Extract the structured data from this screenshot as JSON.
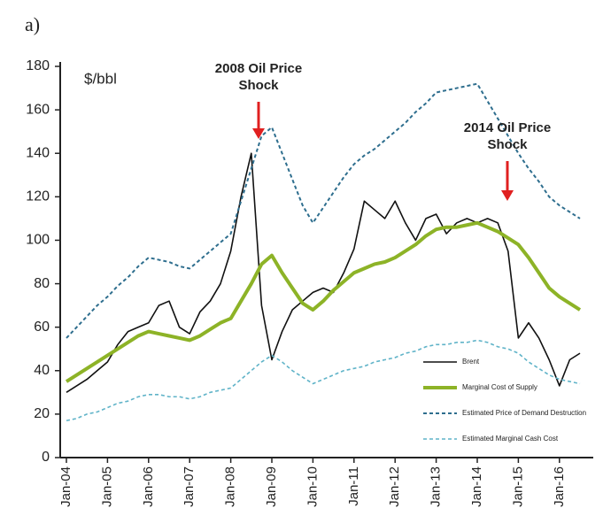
{
  "chart_data": {
    "type": "line",
    "panel_label": "a)",
    "unit_label": "$/bbl",
    "categories": [
      "Jan-04",
      null,
      null,
      null,
      "Jan-05",
      null,
      null,
      null,
      "Jan-06",
      null,
      null,
      null,
      "Jan-07",
      null,
      null,
      null,
      "Jan-08",
      null,
      null,
      null,
      "Jan-09",
      null,
      null,
      null,
      "Jan-10",
      null,
      null,
      null,
      "Jan-11",
      null,
      null,
      null,
      "Jan-12",
      null,
      null,
      null,
      "Jan-13",
      null,
      null,
      null,
      "Jan-14",
      null,
      null,
      null,
      "Jan-15",
      null,
      null,
      null,
      "Jan-16",
      null,
      null
    ],
    "series": [
      {
        "name": "Brent",
        "color": "#111111",
        "style": "solid",
        "width": 1.6,
        "values": [
          30,
          33,
          36,
          40,
          44,
          52,
          58,
          60,
          62,
          70,
          72,
          60,
          57,
          67,
          72,
          80,
          95,
          120,
          140,
          70,
          45,
          58,
          68,
          72,
          76,
          78,
          76,
          85,
          96,
          118,
          114,
          110,
          118,
          108,
          100,
          110,
          112,
          103,
          108,
          110,
          108,
          110,
          108,
          95,
          55,
          62,
          55,
          45,
          33,
          45,
          48
        ]
      },
      {
        "name": "Marginal Cost of Supply",
        "color": "#8db327",
        "style": "solid",
        "width": 4,
        "values": [
          35,
          38,
          41,
          44,
          47,
          50,
          53,
          56,
          58,
          57,
          56,
          55,
          54,
          56,
          59,
          62,
          64,
          72,
          80,
          89,
          93,
          85,
          78,
          71,
          68,
          72,
          77,
          81,
          85,
          87,
          89,
          90,
          92,
          95,
          98,
          102,
          105,
          106,
          106,
          107,
          108,
          106,
          104,
          101,
          98,
          92,
          85,
          78,
          74,
          71,
          68
        ]
      },
      {
        "name": "Estimated Price of Demand Destruction",
        "color": "#2e6e8e",
        "style": "dashed",
        "width": 2,
        "values": [
          55,
          60,
          65,
          70,
          74,
          79,
          83,
          88,
          92,
          91,
          90,
          88,
          87,
          91,
          95,
          99,
          103,
          118,
          133,
          148,
          152,
          140,
          128,
          116,
          108,
          115,
          122,
          129,
          135,
          139,
          142,
          146,
          150,
          154,
          159,
          163,
          168,
          169,
          170,
          171,
          172,
          164,
          156,
          148,
          140,
          133,
          127,
          120,
          116,
          113,
          110
        ]
      },
      {
        "name": "Estimated Marginal Cash Cost",
        "color": "#5fb3c8",
        "style": "dashed",
        "width": 1.6,
        "values": [
          17,
          18,
          20,
          21,
          23,
          25,
          26,
          28,
          29,
          29,
          28,
          28,
          27,
          28,
          30,
          31,
          32,
          36,
          40,
          44,
          47,
          44,
          40,
          37,
          34,
          36,
          38,
          40,
          41,
          42,
          44,
          45,
          46,
          48,
          49,
          51,
          52,
          52,
          53,
          53,
          54,
          53,
          51,
          50,
          48,
          44,
          41,
          38,
          36,
          35,
          34
        ]
      }
    ],
    "ylim": [
      0,
      180
    ],
    "yticks": [
      0,
      20,
      40,
      60,
      80,
      100,
      120,
      140,
      160,
      180
    ],
    "annotations": [
      {
        "lines": [
          "2008 Oil Price",
          "Shock"
        ],
        "color": "#e02020"
      },
      {
        "lines": [
          "2014 Oil Price",
          "Shock"
        ],
        "color": "#e02020"
      }
    ],
    "legend": "lower right"
  }
}
